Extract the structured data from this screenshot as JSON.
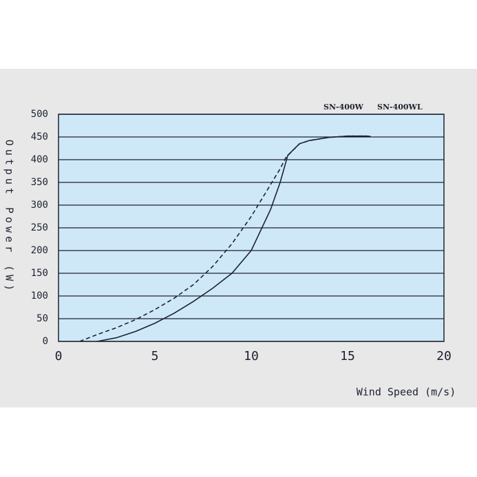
{
  "chart_data": {
    "type": "line",
    "xlabel": "Wind Speed (m/s)",
    "ylabel": "Output Power (W)",
    "xlim": [
      0,
      20
    ],
    "xticks": [
      0,
      5,
      10,
      15,
      20
    ],
    "ylim": [
      0,
      500
    ],
    "yticks": [
      0,
      50,
      100,
      150,
      200,
      250,
      300,
      350,
      400,
      450,
      500
    ],
    "grid": true,
    "series": [
      {
        "name": "SN-400W",
        "color": "#1c2230",
        "dash": false,
        "x": [
          2,
          3,
          4,
          5,
          6,
          7,
          8,
          9,
          10,
          11,
          11.5,
          11.9,
          12.5,
          13,
          14,
          15,
          16,
          16.2
        ],
        "values": [
          0,
          8,
          22,
          40,
          62,
          88,
          117,
          150,
          200,
          290,
          350,
          410,
          435,
          442,
          449,
          452,
          452,
          451
        ]
      },
      {
        "name": "SN-400WL",
        "color": "#1c2230",
        "dash": true,
        "x": [
          1.1,
          2,
          3,
          4,
          5,
          6,
          7,
          8,
          9,
          10,
          11,
          11.5,
          11.8,
          12.5,
          13,
          14,
          15,
          16,
          16.2
        ],
        "values": [
          0,
          15,
          30,
          48,
          70,
          95,
          125,
          165,
          215,
          275,
          345,
          380,
          405,
          435,
          442,
          449,
          452,
          452,
          451
        ]
      }
    ]
  }
}
